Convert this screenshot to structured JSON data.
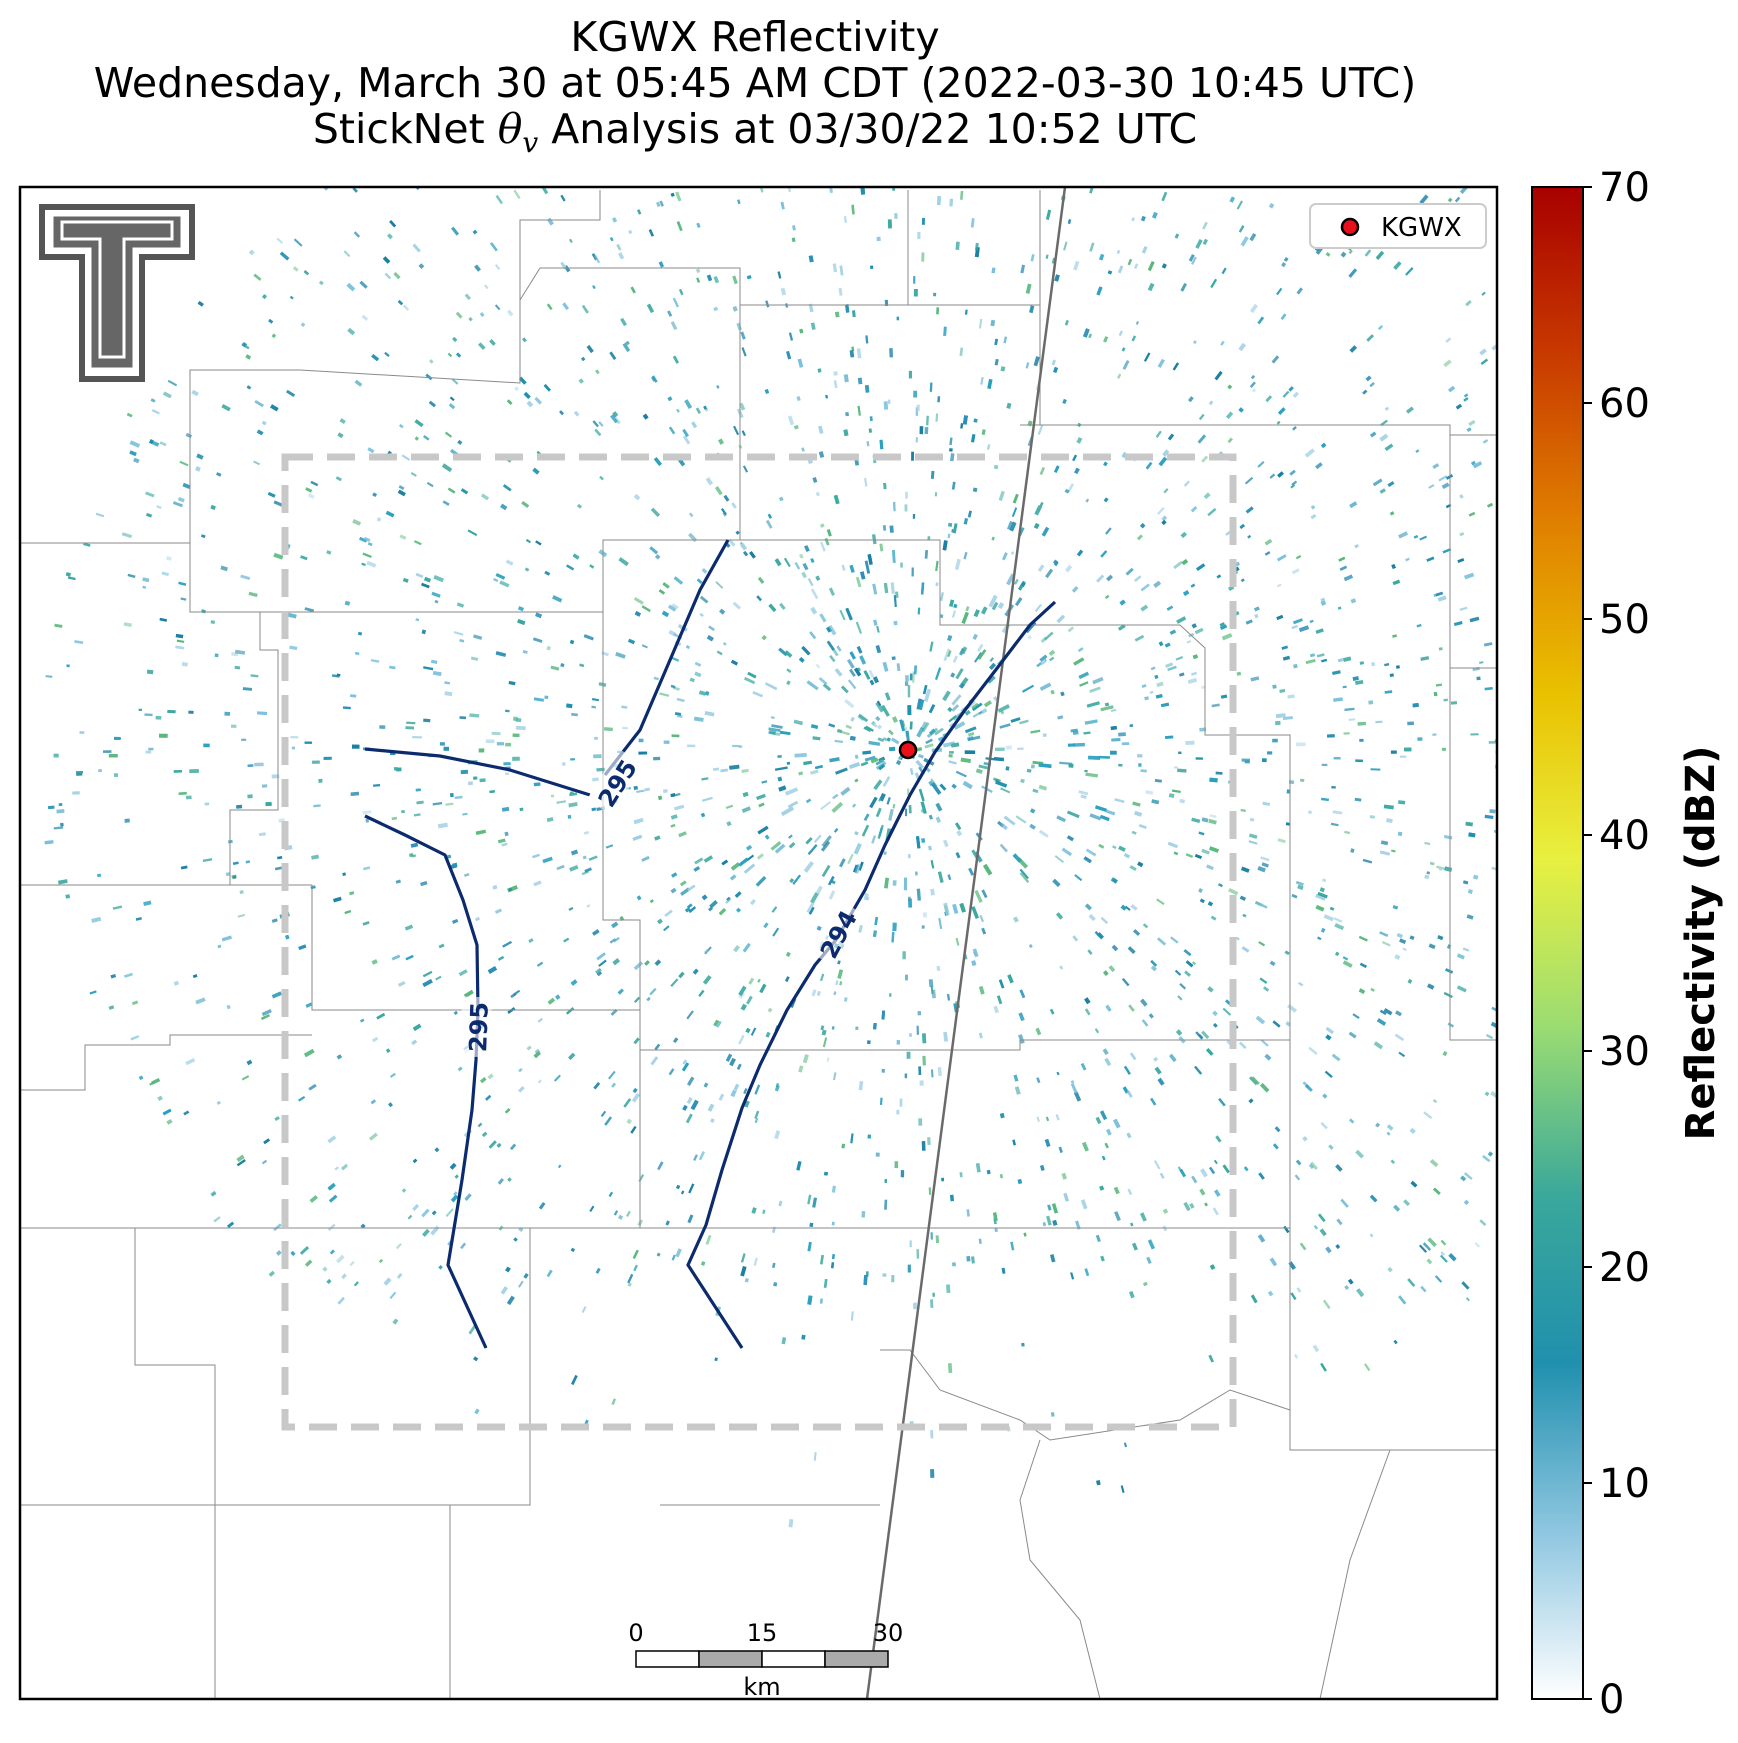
{
  "title": {
    "line1": "KGWX Reflectivity",
    "line2": "Wednesday, March 30 at 05:45 AM CDT (2022-03-30 10:45 UTC)",
    "line3_prefix": "StickNet ",
    "line3_symbol": "θ",
    "line3_subscript": "v",
    "line3_suffix": " Analysis at 03/30/22 10:52 UTC"
  },
  "legend": {
    "label": "KGWX",
    "marker_color": "#e8101a"
  },
  "radar_site": {
    "name": "KGWX"
  },
  "logo": {
    "text": "T",
    "color": "#555555"
  },
  "colorbar": {
    "label": "Reflectivity (dBZ)",
    "ticks": [
      "0",
      "10",
      "20",
      "30",
      "40",
      "50",
      "60",
      "70"
    ],
    "min": 0,
    "max": 70,
    "colors": [
      "#ffffff",
      "#8ec6e0",
      "#2090ae",
      "#3aa89a",
      "#9bdc72",
      "#e8f040",
      "#e9c000",
      "#e08000",
      "#c83a00",
      "#a80000"
    ]
  },
  "contours": [
    {
      "label": "295",
      "color": "#0c2a6e"
    },
    {
      "label": "295",
      "color": "#0c2a6e"
    },
    {
      "label": "294",
      "color": "#0c2a6e"
    }
  ],
  "scale_bar": {
    "ticks": [
      "0",
      "15",
      "30"
    ],
    "unit": "km"
  },
  "analysis_box": {
    "color": "#c8c8c8",
    "style": "dashed"
  }
}
